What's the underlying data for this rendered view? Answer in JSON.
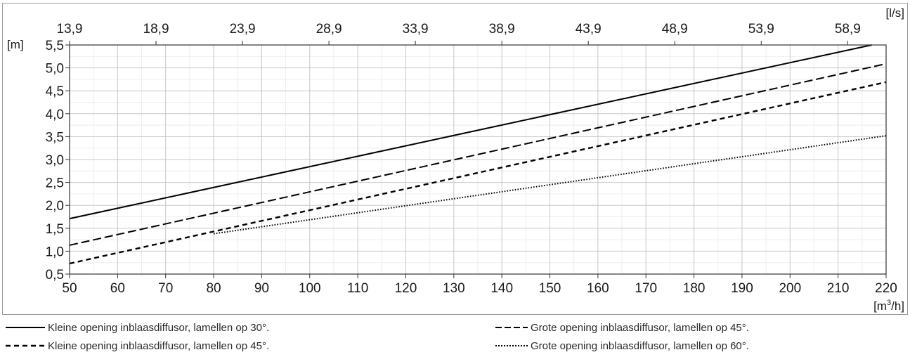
{
  "chart_data": {
    "type": "line",
    "x_unit_label": "[m³/h]",
    "x_unit_base": "[m",
    "x_unit_sup": "3",
    "x_unit_tail": "/h]",
    "x_top_unit_label": "[l/s]",
    "y_unit_label": "[m]",
    "xlim": [
      50,
      220
    ],
    "ylim": [
      0.5,
      5.5
    ],
    "grid": true,
    "x_ticks": [
      50,
      60,
      70,
      80,
      90,
      100,
      110,
      120,
      130,
      140,
      150,
      160,
      170,
      180,
      190,
      200,
      210,
      220
    ],
    "x_tick_labels": [
      "50",
      "60",
      "70",
      "80",
      "90",
      "100",
      "110",
      "120",
      "130",
      "140",
      "150",
      "160",
      "170",
      "180",
      "190",
      "200",
      "210",
      "220"
    ],
    "x_top_ticks": [
      50,
      68,
      86,
      104,
      122,
      140,
      158,
      176,
      194,
      212
    ],
    "x_top_tick_labels": [
      "13,9",
      "18,9",
      "23,9",
      "28,9",
      "33,9",
      "38,9",
      "43,9",
      "48,9",
      "53,9",
      "58,9"
    ],
    "y_ticks": [
      0.5,
      1.0,
      1.5,
      2.0,
      2.5,
      3.0,
      3.5,
      4.0,
      4.5,
      5.0,
      5.5
    ],
    "y_tick_labels": [
      "0,5",
      "1,0",
      "1,5",
      "2,0",
      "2,5",
      "3,0",
      "3,5",
      "4,0",
      "4,5",
      "5,0",
      "5,5"
    ],
    "legend_placement": "bottom",
    "series": [
      {
        "name": "Kleine opening inblaasdiffusor, lamellen op 30°.",
        "style": "solid",
        "color": "#000000",
        "x": [
          50,
          217
        ],
        "y": [
          1.71,
          5.5
        ]
      },
      {
        "name": "Grote opening inblaasdiffusor, lamellen op 45°.",
        "style": "dashed",
        "color": "#000000",
        "x": [
          50,
          220
        ],
        "y": [
          1.13,
          5.09
        ]
      },
      {
        "name": "Kleine opening inblaasdiffusor, lamellen op 45°.",
        "style": "dashed-short",
        "color": "#000000",
        "x": [
          50,
          220
        ],
        "y": [
          0.73,
          4.69
        ]
      },
      {
        "name": "Grote opening inblaasdiffusor, lamellen op 60°.",
        "style": "dotted",
        "color": "#000000",
        "x": [
          80,
          220
        ],
        "y": [
          1.38,
          3.52
        ]
      }
    ]
  }
}
